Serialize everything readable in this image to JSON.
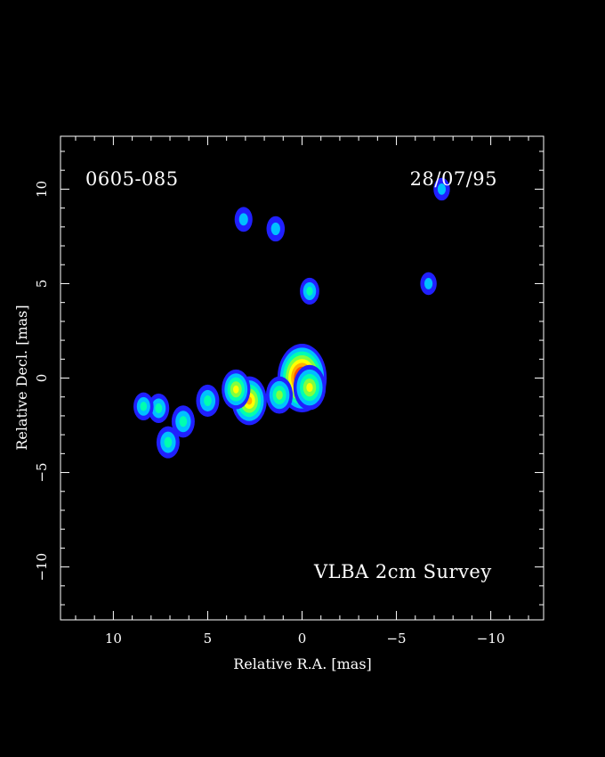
{
  "chart_data": {
    "type": "heatmap",
    "source_name": "0605-085",
    "date": "28/07/95",
    "survey": "VLBA 2cm Survey",
    "xlabel": "Relative R.A. [mas]",
    "ylabel": "Relative Decl. [mas]",
    "xlim": [
      12.8,
      -12.8
    ],
    "ylim": [
      -12.8,
      12.8
    ],
    "x_ticks": [
      "10",
      "5",
      "0",
      "−5",
      "−10"
    ],
    "x_tick_values": [
      10,
      5,
      0,
      -5,
      -10
    ],
    "y_ticks": [
      "10",
      "5",
      "0",
      "−5",
      "−10"
    ],
    "y_tick_values": [
      10,
      5,
      0,
      -5,
      -10
    ],
    "colormap": [
      "#2020ff",
      "#00c0ff",
      "#00ffb0",
      "#80ff40",
      "#ffff00",
      "#ffb000",
      "#ff5000",
      "#ff2020",
      "#ffffff"
    ],
    "components": [
      {
        "x": 0.0,
        "y": 0.0,
        "peak": 1.0
      },
      {
        "x": -0.4,
        "y": -0.5,
        "peak": 0.55
      },
      {
        "x": 1.2,
        "y": -0.9,
        "peak": 0.4
      },
      {
        "x": 2.8,
        "y": -1.2,
        "peak": 0.62
      },
      {
        "x": 3.5,
        "y": -0.6,
        "peak": 0.45
      },
      {
        "x": 5.0,
        "y": -1.2,
        "peak": 0.3
      },
      {
        "x": 6.3,
        "y": -2.3,
        "peak": 0.3
      },
      {
        "x": 7.1,
        "y": -3.4,
        "peak": 0.3
      },
      {
        "x": 7.6,
        "y": -1.6,
        "peak": 0.25
      },
      {
        "x": 8.4,
        "y": -1.5,
        "peak": 0.22
      },
      {
        "x": -0.4,
        "y": 4.6,
        "peak": 0.2
      },
      {
        "x": 1.4,
        "y": 7.9,
        "peak": 0.17
      },
      {
        "x": 3.1,
        "y": 8.4,
        "peak": 0.16
      },
      {
        "x": -6.7,
        "y": 5.0,
        "peak": 0.12
      },
      {
        "x": -7.4,
        "y": 10.0,
        "peak": 0.12
      }
    ]
  }
}
